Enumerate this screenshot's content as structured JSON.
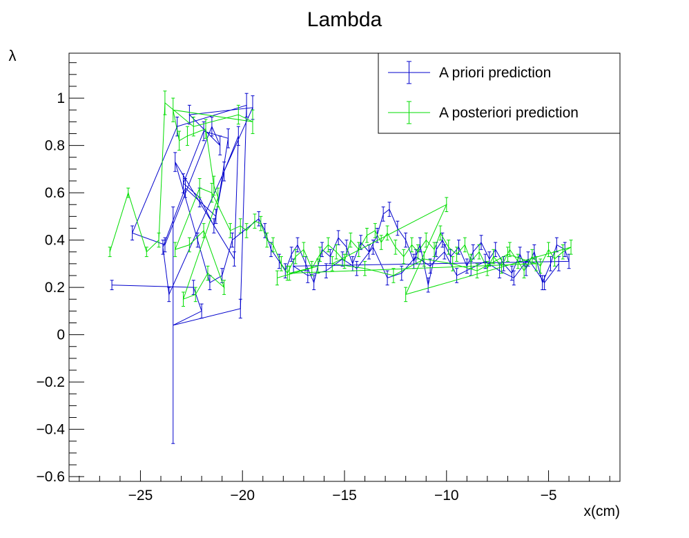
{
  "chart_data": {
    "type": "line",
    "title": "Lambda",
    "xlabel": "x(cm)",
    "ylabel": "λ",
    "xlim": [
      -28.5,
      -1.5
    ],
    "ylim": [
      -0.62,
      1.19
    ],
    "xticks": [
      -25,
      -20,
      -15,
      -10,
      -5
    ],
    "xtick_labels": [
      "−25",
      "−20",
      "−15",
      "−10",
      "−5"
    ],
    "yticks": [
      -0.6,
      -0.4,
      -0.2,
      0,
      0.2,
      0.4,
      0.6,
      0.8,
      1
    ],
    "ytick_labels": [
      "−0.6",
      "−0.4",
      "−0.2",
      "0",
      "0.2",
      "0.4",
      "0.6",
      "0.8",
      "1"
    ],
    "grid": false,
    "legend_position": "top-right",
    "error_bars": true,
    "series": [
      {
        "name": "A priori prediction",
        "color": "#0000cc",
        "x": [
          -26.4,
          -22.4,
          -22.0,
          -23.4,
          -20.1,
          -19.8,
          -23.2,
          -25.4,
          -23.8,
          -21.5,
          -21.1,
          -22.6,
          -19.5,
          -23.6,
          -23.9,
          -22.8,
          -21.3,
          -20.7,
          -21.9,
          -22.9,
          -22.1,
          -21.4,
          -20.9,
          -20.2,
          -20.4,
          -23.3,
          -22.2,
          -21.6,
          -21.0,
          -20.5,
          -19.2,
          -18.9,
          -18.6,
          -18.2,
          -17.9,
          -17.6,
          -17.3,
          -16.9,
          -16.5,
          -16.1,
          -15.7,
          -15.3,
          -14.9,
          -14.6,
          -14.2,
          -13.8,
          -13.4,
          -13.1,
          -12.8,
          -12.4,
          -12.0,
          -11.6,
          -11.3,
          -10.9,
          -10.5,
          -10.2,
          -9.8,
          -9.4,
          -9.0,
          -8.7,
          -8.3,
          -7.9,
          -7.6,
          -7.2,
          -6.8,
          -6.4,
          -6.1,
          -5.7,
          -5.3,
          -4.9,
          -4.6,
          -4.2,
          -4.0,
          -17.5,
          -16.8,
          -15.9,
          -15.1,
          -14.4,
          -13.6,
          -12.9,
          -12.2,
          -11.5,
          -10.8,
          -10.1,
          -9.5,
          -8.8,
          -8.1,
          -7.4,
          -6.7,
          -6.0,
          -5.2,
          -4.5
        ],
        "y": [
          0.21,
          0.2,
          0.1,
          0.04,
          0.11,
          0.97,
          0.88,
          0.43,
          0.38,
          0.88,
          0.8,
          0.93,
          0.96,
          0.17,
          0.37,
          0.62,
          0.5,
          0.83,
          0.86,
          0.64,
          0.58,
          0.46,
          0.69,
          0.84,
          0.32,
          0.73,
          0.4,
          0.22,
          0.25,
          0.4,
          0.49,
          0.44,
          0.36,
          0.31,
          0.27,
          0.34,
          0.38,
          0.3,
          0.22,
          0.36,
          0.33,
          0.41,
          0.37,
          0.3,
          0.39,
          0.35,
          0.42,
          0.51,
          0.53,
          0.45,
          0.4,
          0.31,
          0.38,
          0.21,
          0.36,
          0.4,
          0.33,
          0.37,
          0.29,
          0.35,
          0.39,
          0.32,
          0.36,
          0.3,
          0.26,
          0.34,
          0.28,
          0.35,
          0.22,
          0.3,
          0.38,
          0.36,
          0.31,
          0.29,
          0.25,
          0.27,
          0.32,
          0.28,
          0.37,
          0.24,
          0.26,
          0.33,
          0.29,
          0.35,
          0.25,
          0.28,
          0.31,
          0.27,
          0.24,
          0.32,
          0.22,
          0.3
        ],
        "err": [
          0.02,
          0.03,
          0.03,
          0.5,
          0.04,
          0.05,
          0.04,
          0.03,
          0.03,
          0.04,
          0.04,
          0.04,
          0.05,
          0.03,
          0.03,
          0.04,
          0.03,
          0.04,
          0.04,
          0.04,
          0.04,
          0.03,
          0.04,
          0.04,
          0.03,
          0.04,
          0.03,
          0.03,
          0.03,
          0.03,
          0.03,
          0.03,
          0.03,
          0.03,
          0.03,
          0.03,
          0.03,
          0.03,
          0.03,
          0.03,
          0.03,
          0.03,
          0.03,
          0.03,
          0.03,
          0.03,
          0.03,
          0.03,
          0.03,
          0.03,
          0.03,
          0.03,
          0.03,
          0.03,
          0.03,
          0.03,
          0.03,
          0.03,
          0.03,
          0.03,
          0.03,
          0.03,
          0.03,
          0.03,
          0.03,
          0.03,
          0.03,
          0.03,
          0.03,
          0.03,
          0.03,
          0.03,
          0.03,
          0.03,
          0.03,
          0.03,
          0.03,
          0.03,
          0.03,
          0.03,
          0.03,
          0.03,
          0.03,
          0.03,
          0.03,
          0.03,
          0.03,
          0.03,
          0.03,
          0.03,
          0.03,
          0.03
        ]
      },
      {
        "name": "A posteriori prediction",
        "color": "#00dd00",
        "x": [
          -26.5,
          -25.6,
          -24.7,
          -24.1,
          -23.8,
          -22.4,
          -20.2,
          -19.5,
          -23.4,
          -23.1,
          -22.7,
          -21.8,
          -21.4,
          -21.2,
          -22.9,
          -22.3,
          -21.7,
          -20.9,
          -21.9,
          -22.6,
          -23.3,
          -22.1,
          -21.5,
          -20.6,
          -20.1,
          -19.8,
          -19.4,
          -19.1,
          -18.8,
          -18.5,
          -18.1,
          -17.8,
          -17.4,
          -17.0,
          -16.6,
          -16.2,
          -15.8,
          -15.4,
          -15.0,
          -14.7,
          -14.3,
          -13.9,
          -13.5,
          -13.2,
          -12.9,
          -12.5,
          -12.1,
          -11.7,
          -11.4,
          -11.0,
          -10.6,
          -10.3,
          -9.9,
          -9.5,
          -9.1,
          -8.8,
          -8.4,
          -8.0,
          -7.7,
          -7.3,
          -6.9,
          -6.5,
          -6.2,
          -5.8,
          -5.4,
          -5.0,
          -4.7,
          -4.3,
          -3.9,
          -12.0,
          -10.0,
          -15.6,
          -14.0,
          -12.6,
          -11.1,
          -9.7,
          -8.5,
          -7.0,
          -5.6,
          -17.7,
          -16.3,
          -18.3
        ],
        "y": [
          0.35,
          0.6,
          0.35,
          0.4,
          0.98,
          0.88,
          0.93,
          0.9,
          0.95,
          0.82,
          0.84,
          0.87,
          0.63,
          0.58,
          0.15,
          0.17,
          0.26,
          0.2,
          0.44,
          0.38,
          0.36,
          0.62,
          0.6,
          0.44,
          0.46,
          0.44,
          0.48,
          0.47,
          0.4,
          0.38,
          0.3,
          0.26,
          0.33,
          0.36,
          0.28,
          0.34,
          0.38,
          0.35,
          0.31,
          0.4,
          0.36,
          0.42,
          0.44,
          0.39,
          0.43,
          0.37,
          0.33,
          0.38,
          0.35,
          0.4,
          0.36,
          0.43,
          0.37,
          0.34,
          0.38,
          0.31,
          0.35,
          0.28,
          0.33,
          0.29,
          0.36,
          0.31,
          0.27,
          0.33,
          0.29,
          0.36,
          0.32,
          0.35,
          0.37,
          0.17,
          0.55,
          0.3,
          0.28,
          0.25,
          0.32,
          0.3,
          0.27,
          0.34,
          0.3,
          0.26,
          0.29,
          0.24
        ],
        "err": [
          0.02,
          0.02,
          0.02,
          0.03,
          0.05,
          0.04,
          0.04,
          0.05,
          0.05,
          0.04,
          0.04,
          0.04,
          0.04,
          0.04,
          0.03,
          0.03,
          0.03,
          0.03,
          0.03,
          0.03,
          0.03,
          0.04,
          0.04,
          0.03,
          0.03,
          0.03,
          0.03,
          0.03,
          0.03,
          0.03,
          0.03,
          0.03,
          0.03,
          0.03,
          0.03,
          0.03,
          0.03,
          0.03,
          0.03,
          0.03,
          0.03,
          0.03,
          0.03,
          0.03,
          0.03,
          0.03,
          0.03,
          0.03,
          0.03,
          0.03,
          0.03,
          0.03,
          0.03,
          0.03,
          0.03,
          0.03,
          0.03,
          0.03,
          0.03,
          0.03,
          0.03,
          0.03,
          0.03,
          0.03,
          0.03,
          0.03,
          0.03,
          0.03,
          0.03,
          0.03,
          0.03,
          0.03,
          0.03,
          0.03,
          0.03,
          0.03,
          0.03,
          0.03,
          0.03,
          0.03,
          0.03,
          0.03
        ]
      }
    ]
  }
}
